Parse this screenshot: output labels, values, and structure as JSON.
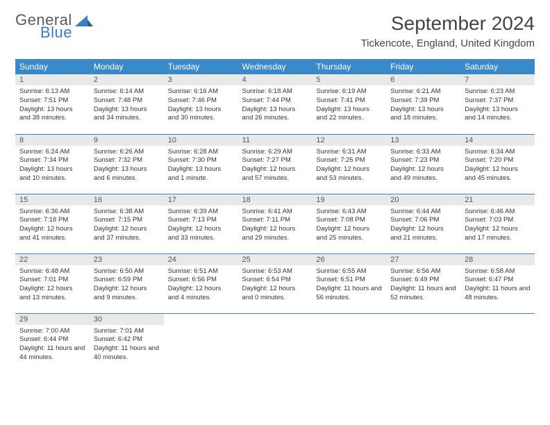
{
  "brand": {
    "word1": "General",
    "word2": "Blue"
  },
  "title": "September 2024",
  "location": "Tickencote, England, United Kingdom",
  "colors": {
    "header_bg": "#3a8ac9",
    "header_text": "#ffffff",
    "daynum_bg": "#e9e9e9",
    "row_divider": "#3a8ac9",
    "brand_blue": "#3a7fc4",
    "text": "#333333"
  },
  "typography": {
    "title_fontsize": 28,
    "location_fontsize": 15,
    "dayheader_fontsize": 12,
    "daynum_fontsize": 11,
    "cell_fontsize": 9.5
  },
  "day_headers": [
    "Sunday",
    "Monday",
    "Tuesday",
    "Wednesday",
    "Thursday",
    "Friday",
    "Saturday"
  ],
  "weeks": [
    [
      {
        "n": "1",
        "sr": "6:13 AM",
        "ss": "7:51 PM",
        "dl": "13 hours and 38 minutes."
      },
      {
        "n": "2",
        "sr": "6:14 AM",
        "ss": "7:48 PM",
        "dl": "13 hours and 34 minutes."
      },
      {
        "n": "3",
        "sr": "6:16 AM",
        "ss": "7:46 PM",
        "dl": "13 hours and 30 minutes."
      },
      {
        "n": "4",
        "sr": "6:18 AM",
        "ss": "7:44 PM",
        "dl": "13 hours and 26 minutes."
      },
      {
        "n": "5",
        "sr": "6:19 AM",
        "ss": "7:41 PM",
        "dl": "13 hours and 22 minutes."
      },
      {
        "n": "6",
        "sr": "6:21 AM",
        "ss": "7:39 PM",
        "dl": "13 hours and 18 minutes."
      },
      {
        "n": "7",
        "sr": "6:23 AM",
        "ss": "7:37 PM",
        "dl": "13 hours and 14 minutes."
      }
    ],
    [
      {
        "n": "8",
        "sr": "6:24 AM",
        "ss": "7:34 PM",
        "dl": "13 hours and 10 minutes."
      },
      {
        "n": "9",
        "sr": "6:26 AM",
        "ss": "7:32 PM",
        "dl": "13 hours and 6 minutes."
      },
      {
        "n": "10",
        "sr": "6:28 AM",
        "ss": "7:30 PM",
        "dl": "13 hours and 1 minute."
      },
      {
        "n": "11",
        "sr": "6:29 AM",
        "ss": "7:27 PM",
        "dl": "12 hours and 57 minutes."
      },
      {
        "n": "12",
        "sr": "6:31 AM",
        "ss": "7:25 PM",
        "dl": "12 hours and 53 minutes."
      },
      {
        "n": "13",
        "sr": "6:33 AM",
        "ss": "7:23 PM",
        "dl": "12 hours and 49 minutes."
      },
      {
        "n": "14",
        "sr": "6:34 AM",
        "ss": "7:20 PM",
        "dl": "12 hours and 45 minutes."
      }
    ],
    [
      {
        "n": "15",
        "sr": "6:36 AM",
        "ss": "7:18 PM",
        "dl": "12 hours and 41 minutes."
      },
      {
        "n": "16",
        "sr": "6:38 AM",
        "ss": "7:15 PM",
        "dl": "12 hours and 37 minutes."
      },
      {
        "n": "17",
        "sr": "6:39 AM",
        "ss": "7:13 PM",
        "dl": "12 hours and 33 minutes."
      },
      {
        "n": "18",
        "sr": "6:41 AM",
        "ss": "7:11 PM",
        "dl": "12 hours and 29 minutes."
      },
      {
        "n": "19",
        "sr": "6:43 AM",
        "ss": "7:08 PM",
        "dl": "12 hours and 25 minutes."
      },
      {
        "n": "20",
        "sr": "6:44 AM",
        "ss": "7:06 PM",
        "dl": "12 hours and 21 minutes."
      },
      {
        "n": "21",
        "sr": "6:46 AM",
        "ss": "7:03 PM",
        "dl": "12 hours and 17 minutes."
      }
    ],
    [
      {
        "n": "22",
        "sr": "6:48 AM",
        "ss": "7:01 PM",
        "dl": "12 hours and 13 minutes."
      },
      {
        "n": "23",
        "sr": "6:50 AM",
        "ss": "6:59 PM",
        "dl": "12 hours and 9 minutes."
      },
      {
        "n": "24",
        "sr": "6:51 AM",
        "ss": "6:56 PM",
        "dl": "12 hours and 4 minutes."
      },
      {
        "n": "25",
        "sr": "6:53 AM",
        "ss": "6:54 PM",
        "dl": "12 hours and 0 minutes."
      },
      {
        "n": "26",
        "sr": "6:55 AM",
        "ss": "6:51 PM",
        "dl": "11 hours and 56 minutes."
      },
      {
        "n": "27",
        "sr": "6:56 AM",
        "ss": "6:49 PM",
        "dl": "11 hours and 52 minutes."
      },
      {
        "n": "28",
        "sr": "6:58 AM",
        "ss": "6:47 PM",
        "dl": "11 hours and 48 minutes."
      }
    ],
    [
      {
        "n": "29",
        "sr": "7:00 AM",
        "ss": "6:44 PM",
        "dl": "11 hours and 44 minutes."
      },
      {
        "n": "30",
        "sr": "7:01 AM",
        "ss": "6:42 PM",
        "dl": "11 hours and 40 minutes."
      },
      null,
      null,
      null,
      null,
      null
    ]
  ],
  "labels": {
    "sunrise": "Sunrise:",
    "sunset": "Sunset:",
    "daylight": "Daylight:"
  }
}
